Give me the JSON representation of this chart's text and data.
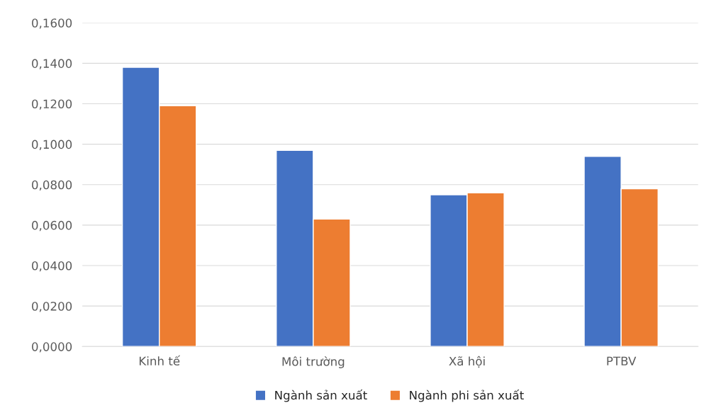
{
  "chart_data": {
    "type": "bar",
    "categories": [
      "Kinh tế",
      "Môi trường",
      "Xã hội",
      "PTBV"
    ],
    "series": [
      {
        "name": "Ngành sản xuất",
        "color": "#4472c4",
        "values": [
          0.138,
          0.097,
          0.075,
          0.094
        ]
      },
      {
        "name": "Ngành phi sản xuất",
        "color": "#ed7d31",
        "values": [
          0.119,
          0.063,
          0.076,
          0.078
        ]
      }
    ],
    "ylim": [
      0,
      0.16
    ],
    "yticks": [
      {
        "value": 0,
        "label": "0,0000"
      },
      {
        "value": 0.02,
        "label": "0,0200"
      },
      {
        "value": 0.04,
        "label": "0,0400"
      },
      {
        "value": 0.06,
        "label": "0,0600"
      },
      {
        "value": 0.08,
        "label": "0,0800"
      },
      {
        "value": 0.1,
        "label": "0,1000"
      },
      {
        "value": 0.12,
        "label": "0,1200"
      },
      {
        "value": 0.14,
        "label": "0,1400"
      },
      {
        "value": 0.16,
        "label": "0,1600"
      }
    ],
    "grid": "y",
    "legend": "bottom"
  }
}
